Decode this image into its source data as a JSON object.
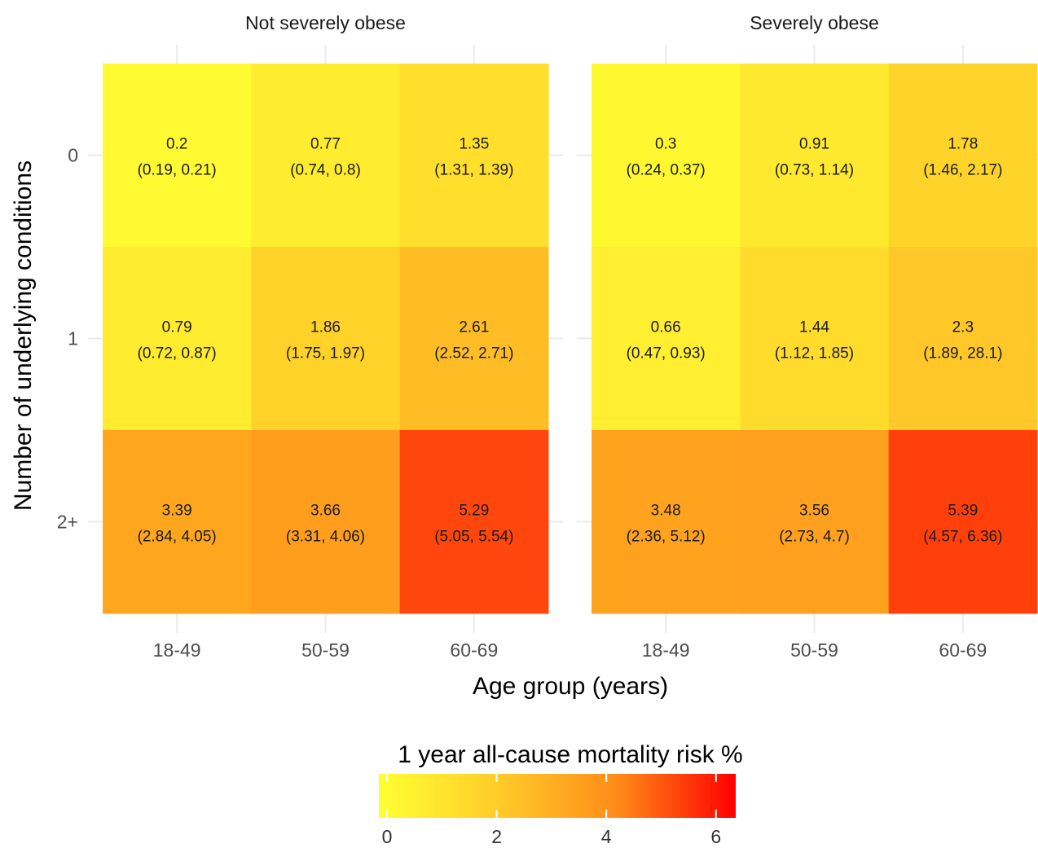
{
  "chart_data": {
    "type": "heatmap",
    "xlabel": "Age group (years)",
    "ylabel": "Number of underlying conditions",
    "x_categories": [
      "18-49",
      "50-59",
      "60-69"
    ],
    "y_categories": [
      "0",
      "1",
      "2+"
    ],
    "facets": [
      {
        "title": "Not severely obese",
        "cells": [
          {
            "x": "18-49",
            "y": "0",
            "value": 0.2,
            "label": "0.2",
            "ci": "(0.19, 0.21)"
          },
          {
            "x": "50-59",
            "y": "0",
            "value": 0.77,
            "label": "0.77",
            "ci": "(0.74, 0.8)"
          },
          {
            "x": "60-69",
            "y": "0",
            "value": 1.35,
            "label": "1.35",
            "ci": "(1.31, 1.39)"
          },
          {
            "x": "18-49",
            "y": "1",
            "value": 0.79,
            "label": "0.79",
            "ci": "(0.72, 0.87)"
          },
          {
            "x": "50-59",
            "y": "1",
            "value": 1.86,
            "label": "1.86",
            "ci": "(1.75, 1.97)"
          },
          {
            "x": "60-69",
            "y": "1",
            "value": 2.61,
            "label": "2.61",
            "ci": "(2.52, 2.71)"
          },
          {
            "x": "18-49",
            "y": "2+",
            "value": 3.39,
            "label": "3.39",
            "ci": "(2.84, 4.05)"
          },
          {
            "x": "50-59",
            "y": "2+",
            "value": 3.66,
            "label": "3.66",
            "ci": "(3.31, 4.06)"
          },
          {
            "x": "60-69",
            "y": "2+",
            "value": 5.29,
            "label": "5.29",
            "ci": "(5.05, 5.54)"
          }
        ]
      },
      {
        "title": "Severely obese",
        "cells": [
          {
            "x": "18-49",
            "y": "0",
            "value": 0.3,
            "label": "0.3",
            "ci": "(0.24, 0.37)"
          },
          {
            "x": "50-59",
            "y": "0",
            "value": 0.91,
            "label": "0.91",
            "ci": "(0.73, 1.14)"
          },
          {
            "x": "60-69",
            "y": "0",
            "value": 1.78,
            "label": "1.78",
            "ci": "(1.46, 2.17)"
          },
          {
            "x": "18-49",
            "y": "1",
            "value": 0.66,
            "label": "0.66",
            "ci": "(0.47, 0.93)"
          },
          {
            "x": "50-59",
            "y": "1",
            "value": 1.44,
            "label": "1.44",
            "ci": "(1.12, 1.85)"
          },
          {
            "x": "60-69",
            "y": "1",
            "value": 2.3,
            "label": "2.3",
            "ci": "(1.89, 28.1)"
          },
          {
            "x": "18-49",
            "y": "2+",
            "value": 3.48,
            "label": "3.48",
            "ci": "(2.36, 5.12)"
          },
          {
            "x": "50-59",
            "y": "2+",
            "value": 3.56,
            "label": "3.56",
            "ci": "(2.73, 4.7)"
          },
          {
            "x": "60-69",
            "y": "2+",
            "value": 5.39,
            "label": "5.39",
            "ci": "(4.57, 6.36)"
          }
        ]
      }
    ],
    "legend": {
      "title": "1 year all-cause mortality risk %",
      "ticks": [
        0,
        2,
        4,
        6
      ],
      "range": [
        0,
        6.36
      ],
      "placement": "bottom",
      "colors": [
        "#ffff33",
        "#ffcc28",
        "#ff8c19",
        "#ff0000"
      ]
    },
    "grid": true
  }
}
